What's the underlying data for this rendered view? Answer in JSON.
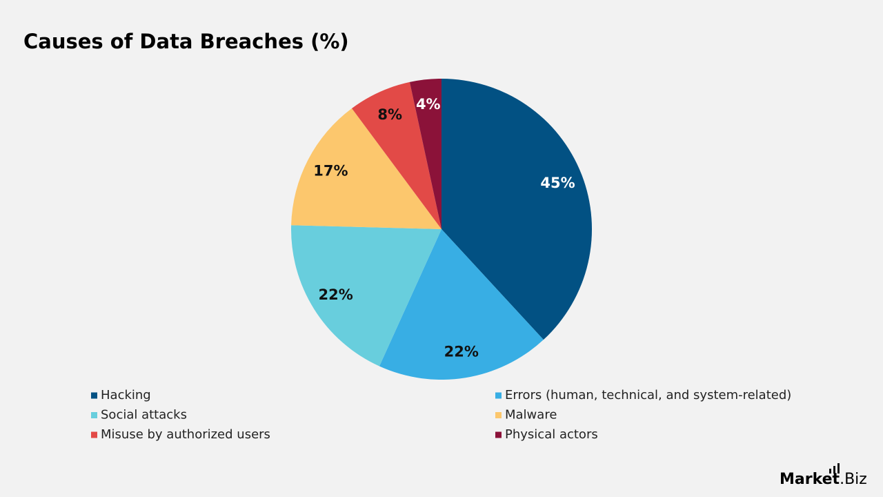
{
  "chart_data": {
    "type": "pie",
    "title": "Causes of Data Breaches (%)",
    "categories": [
      "Hacking",
      "Errors (human, technical, and system-related)",
      "Social attacks",
      "Malware",
      "Misuse by authorized users",
      "Physical actors"
    ],
    "values": [
      45,
      22,
      22,
      17,
      8,
      4
    ],
    "value_labels": [
      "45%",
      "22%",
      "22%",
      "17%",
      "8%",
      "4%"
    ],
    "colors": [
      "#025183",
      "#38aee4",
      "#68cedd",
      "#fcc76d",
      "#e24a47",
      "#8b1239"
    ]
  },
  "logo": {
    "brand": "Market",
    "suffix": ".Biz"
  }
}
